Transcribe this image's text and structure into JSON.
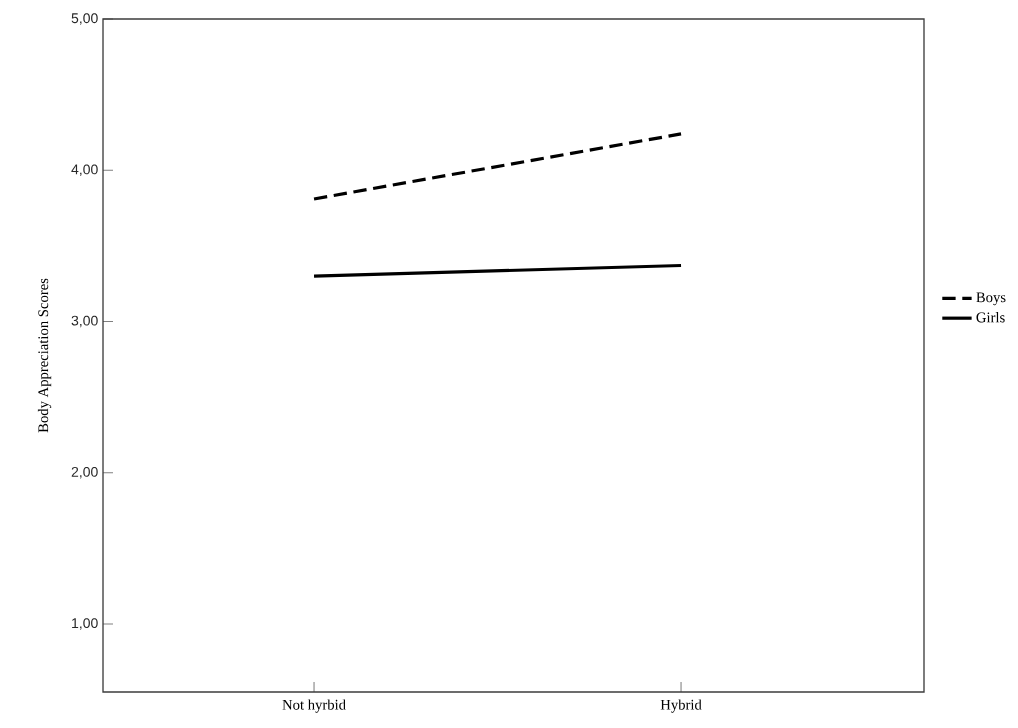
{
  "chart_data": {
    "type": "line",
    "ylabel": "Body Appreciation Scores",
    "categories": [
      "Not hyrbid",
      "Hybrid"
    ],
    "series": [
      {
        "name": "Boys",
        "color": "#000000",
        "values": [
          3.81,
          4.24
        ],
        "line_style": "dashed"
      },
      {
        "name": "Girls",
        "color": "#000000",
        "values": [
          3.3,
          3.37
        ],
        "line_style": "solid"
      }
    ],
    "ylim": [
      0.55,
      5.0
    ],
    "yticks": [
      {
        "value": 1,
        "label": "1,00"
      },
      {
        "value": 2,
        "label": "2,00"
      },
      {
        "value": 3,
        "label": "3,00"
      },
      {
        "value": 4,
        "label": "4,00"
      },
      {
        "value": 5,
        "label": "5,00"
      }
    ],
    "grid": false,
    "legend": "right",
    "marker": "none"
  }
}
